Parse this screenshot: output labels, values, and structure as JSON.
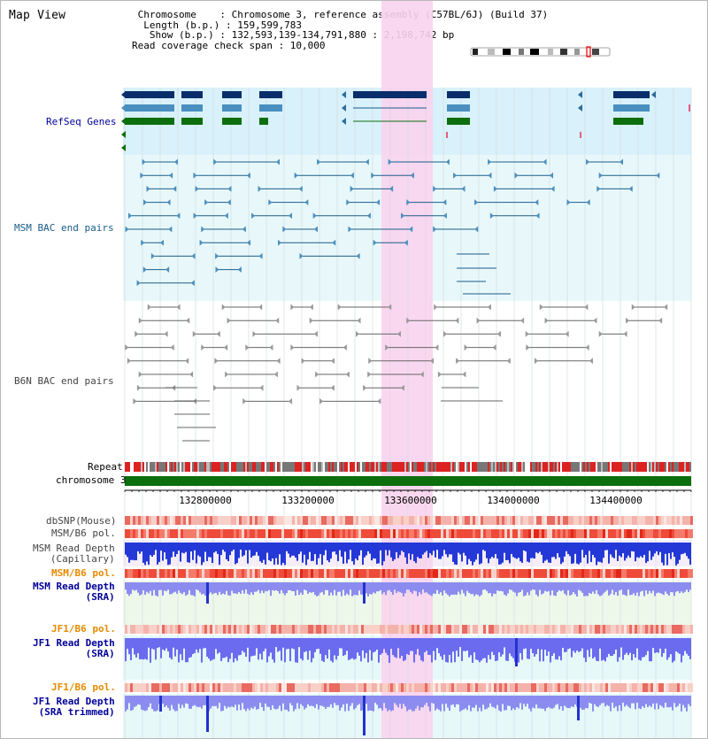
{
  "view_title": "Map View",
  "info": {
    "chromosome_line": " Chromosome    : Chromosome 3, reference assembly (C57BL/6J) (Build 37)",
    "length_line": "  Length (b.p.) : 159,599,783",
    "show_line": "   Show (b.p.) : 132,593,139-134,791,880 : 2,198,742 bp",
    "coverage_line": "Read coverage check span : 10,000"
  },
  "tracks": {
    "refseq": "RefSeq Genes",
    "msm_bac": "MSM BAC end pairs",
    "b6n_bac": "B6N BAC end pairs",
    "repeat": "Repeat",
    "chromosome": "chromosome 3",
    "dbsnp": "dbSNP(Mouse)",
    "msm_b6_pol": "MSM/B6 pol.",
    "msm_depth_cap_1": "MSM Read Depth",
    "msm_depth_cap_2": "(Capillary)",
    "msm_b6_pol_sra": "MSM/B6 pol.",
    "msm_depth_sra_1": "MSM Read Depth",
    "msm_depth_sra_2": "(SRA)",
    "jf1_b6_pol": "JF1/B6 pol.",
    "jf1_depth_sra_1": "JF1 Read Depth",
    "jf1_depth_sra_2": "(SRA)",
    "jf1_b6_pol_trim": "JF1/B6 pol.",
    "jf1_depth_trim_1": "JF1 Read Depth",
    "jf1_depth_trim_2": "(SRA trimmed)"
  },
  "axis_ticks": [
    "132800000",
    "133200000",
    "133600000",
    "134000000",
    "134400000"
  ],
  "colors": {
    "refseq_label": "#000099",
    "msm_label": "#1a5c8a",
    "b6n_label": "#444444",
    "sra_label": "#000099",
    "pol_label": "#e68a00",
    "highlight": "#f9d3ee",
    "chromosome_bar": "#0d6e0d"
  }
}
